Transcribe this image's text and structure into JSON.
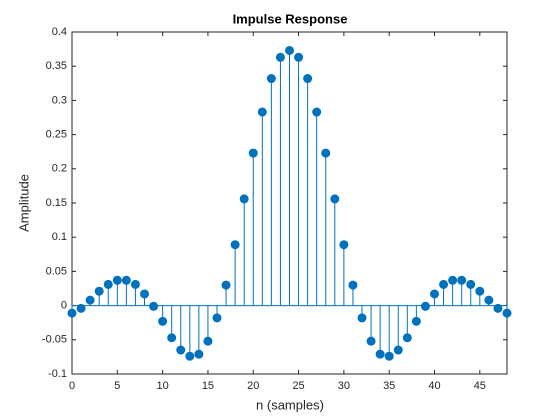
{
  "chart_data": {
    "type": "stem",
    "title": "Impulse Response",
    "x_label": "n (samples)",
    "y_label": "Amplitude",
    "x": [
      0,
      1,
      2,
      3,
      4,
      5,
      6,
      7,
      8,
      9,
      10,
      11,
      12,
      13,
      14,
      15,
      16,
      17,
      18,
      19,
      20,
      21,
      22,
      23,
      24,
      25,
      26,
      27,
      28,
      29,
      30,
      31,
      32,
      33,
      34,
      35,
      36,
      37,
      38,
      39,
      40,
      41,
      42,
      43,
      44,
      45,
      46,
      47,
      48
    ],
    "values": [
      -0.011,
      -0.004,
      0.008,
      0.021,
      0.031,
      0.037,
      0.037,
      0.031,
      0.017,
      -0.001,
      -0.023,
      -0.047,
      -0.065,
      -0.074,
      -0.071,
      -0.052,
      -0.018,
      0.03,
      0.089,
      0.156,
      0.223,
      0.283,
      0.332,
      0.363,
      0.373,
      0.363,
      0.332,
      0.283,
      0.223,
      0.156,
      0.089,
      0.03,
      -0.018,
      -0.052,
      -0.071,
      -0.074,
      -0.065,
      -0.047,
      -0.023,
      -0.001,
      0.017,
      0.031,
      0.037,
      0.037,
      0.031,
      0.021,
      0.008,
      -0.004,
      -0.011
    ],
    "color": "#0072bd",
    "xlim": [
      0,
      48
    ],
    "xticks": [
      0,
      5,
      10,
      15,
      20,
      25,
      30,
      35,
      40,
      45
    ],
    "ylim": [
      -0.1,
      0.4
    ],
    "yticks": [
      -0.1,
      -0.05,
      0,
      0.05,
      0.1,
      0.15,
      0.2,
      0.25,
      0.3,
      0.35,
      0.4
    ],
    "grid": false
  }
}
